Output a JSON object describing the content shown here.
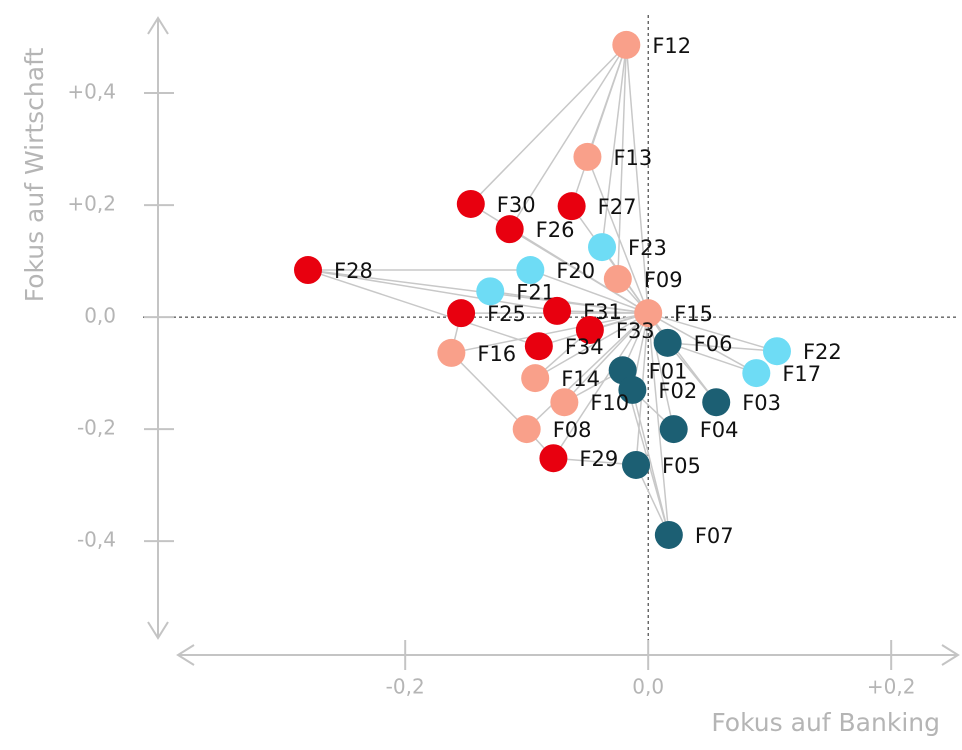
{
  "chart_data": {
    "type": "scatter",
    "xlabel": "Fokus auf Banking",
    "ylabel": "Fokus auf Wirtschaft",
    "xlim": [
      -0.387,
      0.255
    ],
    "ylim": [
      -0.573,
      0.534
    ],
    "xticks": [
      {
        "value": -0.2,
        "label": "-0,2"
      },
      {
        "value": 0,
        "label": "0,0"
      },
      {
        "value": 0.2,
        "label": "+0,2"
      }
    ],
    "yticks": [
      {
        "value": 0.4,
        "label": "+0,4"
      },
      {
        "value": 0.2,
        "label": "+0,2"
      },
      {
        "value": 0,
        "label": "0,0"
      },
      {
        "value": -0.2,
        "label": "-0,2"
      },
      {
        "value": -0.4,
        "label": "-0,4"
      }
    ],
    "points": [
      {
        "label": "F12",
        "x": -0.018,
        "y": 0.486,
        "color": "#f9a08a"
      },
      {
        "label": "F13",
        "x": -0.05,
        "y": 0.286,
        "color": "#f9a08a"
      },
      {
        "label": "F30",
        "x": -0.146,
        "y": 0.202,
        "color": "#e8000f"
      },
      {
        "label": "F27",
        "x": -0.063,
        "y": 0.198,
        "color": "#e8000f"
      },
      {
        "label": "F26",
        "x": -0.114,
        "y": 0.157,
        "color": "#e8000f"
      },
      {
        "label": "F23",
        "x": -0.038,
        "y": 0.125,
        "color": "#6edcf5"
      },
      {
        "label": "F28",
        "x": -0.28,
        "y": 0.084,
        "color": "#e8000f"
      },
      {
        "label": "F20",
        "x": -0.097,
        "y": 0.084,
        "color": "#6edcf5"
      },
      {
        "label": "F09",
        "x": -0.025,
        "y": 0.068,
        "color": "#f9a08a"
      },
      {
        "label": "F21",
        "x": -0.13,
        "y": 0.046,
        "color": "#6edcf5"
      },
      {
        "label": "F31",
        "x": -0.075,
        "y": 0.011,
        "color": "#e8000f"
      },
      {
        "label": "F25",
        "x": -0.154,
        "y": 0.007,
        "color": "#e8000f"
      },
      {
        "label": "F15",
        "x": 0.0,
        "y": 0.007,
        "color": "#f9a08a"
      },
      {
        "label": "F33",
        "x": -0.048,
        "y": -0.023,
        "color": "#e8000f"
      },
      {
        "label": "F34",
        "x": -0.09,
        "y": -0.052,
        "color": "#e8000f"
      },
      {
        "label": "F06",
        "x": 0.016,
        "y": -0.046,
        "color": "#1c5f73"
      },
      {
        "label": "F16",
        "x": -0.162,
        "y": -0.064,
        "color": "#f9a08a"
      },
      {
        "label": "F22",
        "x": 0.106,
        "y": -0.061,
        "color": "#6edcf5"
      },
      {
        "label": "F01",
        "x": -0.021,
        "y": -0.095,
        "color": "#1c5f73"
      },
      {
        "label": "F17",
        "x": 0.089,
        "y": -0.1,
        "color": "#6edcf5"
      },
      {
        "label": "F14",
        "x": -0.093,
        "y": -0.109,
        "color": "#f9a08a"
      },
      {
        "label": "F02",
        "x": -0.013,
        "y": -0.13,
        "color": "#1c5f73"
      },
      {
        "label": "F10",
        "x": -0.069,
        "y": -0.152,
        "color": "#f9a08a"
      },
      {
        "label": "F03",
        "x": 0.056,
        "y": -0.152,
        "color": "#1c5f73"
      },
      {
        "label": "F04",
        "x": 0.021,
        "y": -0.2,
        "color": "#1c5f73"
      },
      {
        "label": "F08",
        "x": -0.1,
        "y": -0.2,
        "color": "#f9a08a"
      },
      {
        "label": "F29",
        "x": -0.078,
        "y": -0.252,
        "color": "#e8000f"
      },
      {
        "label": "F05",
        "x": -0.01,
        "y": -0.264,
        "color": "#1c5f73"
      },
      {
        "label": "F07",
        "x": 0.017,
        "y": -0.389,
        "color": "#1c5f73"
      }
    ],
    "edges": [
      [
        "F12",
        "F13"
      ],
      [
        "F12",
        "F30"
      ],
      [
        "F12",
        "F27"
      ],
      [
        "F12",
        "F09"
      ],
      [
        "F12",
        "F23"
      ],
      [
        "F12",
        "F15"
      ],
      [
        "F12",
        "F26"
      ],
      [
        "F13",
        "F15"
      ],
      [
        "F30",
        "F15"
      ],
      [
        "F27",
        "F15"
      ],
      [
        "F26",
        "F15"
      ],
      [
        "F23",
        "F15"
      ],
      [
        "F28",
        "F15"
      ],
      [
        "F28",
        "F20"
      ],
      [
        "F28",
        "F31"
      ],
      [
        "F28",
        "F34"
      ],
      [
        "F20",
        "F15"
      ],
      [
        "F09",
        "F15"
      ],
      [
        "F21",
        "F15"
      ],
      [
        "F31",
        "F15"
      ],
      [
        "F25",
        "F15"
      ],
      [
        "F33",
        "F15"
      ],
      [
        "F34",
        "F15"
      ],
      [
        "F06",
        "F15"
      ],
      [
        "F16",
        "F15"
      ],
      [
        "F16",
        "F08"
      ],
      [
        "F16",
        "F25"
      ],
      [
        "F22",
        "F15"
      ],
      [
        "F22",
        "F06"
      ],
      [
        "F01",
        "F15"
      ],
      [
        "F17",
        "F15"
      ],
      [
        "F17",
        "F06"
      ],
      [
        "F14",
        "F15"
      ],
      [
        "F14",
        "F33"
      ],
      [
        "F02",
        "F15"
      ],
      [
        "F10",
        "F15"
      ],
      [
        "F10",
        "F01"
      ],
      [
        "F03",
        "F15"
      ],
      [
        "F03",
        "F06"
      ],
      [
        "F04",
        "F15"
      ],
      [
        "F04",
        "F02"
      ],
      [
        "F08",
        "F15"
      ],
      [
        "F08",
        "F29"
      ],
      [
        "F29",
        "F15"
      ],
      [
        "F29",
        "F05"
      ],
      [
        "F05",
        "F15"
      ],
      [
        "F05",
        "F07"
      ],
      [
        "F07",
        "F15"
      ],
      [
        "F07",
        "F01"
      ],
      [
        "F07",
        "F02"
      ],
      [
        "F01",
        "F02"
      ]
    ]
  }
}
